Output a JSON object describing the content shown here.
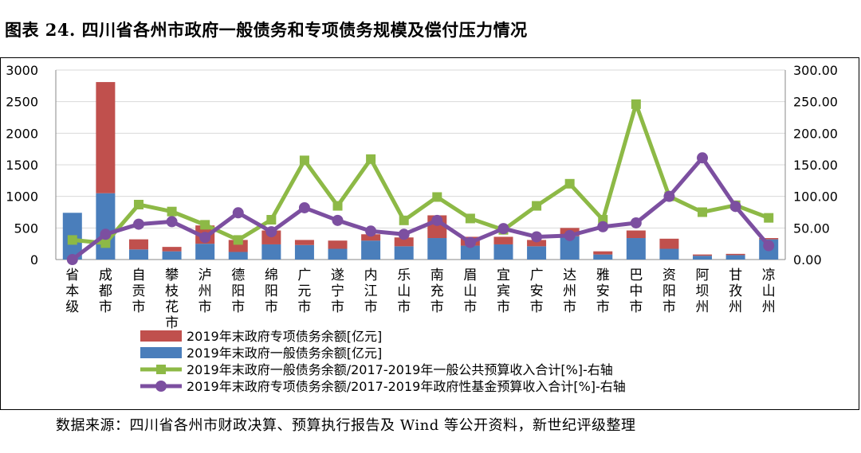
{
  "title": "图表 24. 四川省各州市政府一般债务和专项债务规模及偿付压力情况",
  "source": "数据来源：四川省各州市财政决算、预算执行报告及 Wind 等公开资料，新世纪评级整理",
  "chart_data": {
    "type": "bar",
    "stacked": true,
    "categories": [
      "省本级",
      "成都市",
      "自贡市",
      "攀枝花市",
      "泸州市",
      "德阳市",
      "绵阳市",
      "广元市",
      "遂宁市",
      "内江市",
      "乐山市",
      "南充市",
      "眉山市",
      "宜宾市",
      "广安市",
      "达州市",
      "雅安市",
      "巴中市",
      "资阳市",
      "阿坝州",
      "甘孜州",
      "凉山州"
    ],
    "series": [
      {
        "name": "2019年末政府专项债务余额[亿元]",
        "axis": "left",
        "kind": "bar",
        "color": "#c0504d",
        "values": [
          0,
          1760,
          160,
          70,
          290,
          190,
          220,
          80,
          130,
          100,
          140,
          360,
          140,
          120,
          100,
          130,
          50,
          120,
          160,
          20,
          20,
          20
        ]
      },
      {
        "name": "2019年末政府一般债务余额[亿元]",
        "axis": "left",
        "kind": "bar",
        "color": "#4a7ebb",
        "values": [
          740,
          1050,
          160,
          130,
          250,
          120,
          240,
          230,
          170,
          300,
          210,
          340,
          220,
          240,
          210,
          370,
          80,
          340,
          170,
          60,
          70,
          320
        ]
      },
      {
        "name": "2019年末政府一般债务余额/2017-2019年一般公共预算收入合计[%]-右轴",
        "axis": "right",
        "kind": "line",
        "color": "#8db946",
        "marker": "square",
        "values": [
          31,
          26,
          87,
          76,
          55,
          31,
          63,
          157,
          85,
          159,
          62,
          99,
          65,
          47,
          85,
          120,
          63,
          246,
          100,
          75,
          86,
          66
        ]
      },
      {
        "name": "2019年末政府专项债务余额/2017-2019年政府性基金预算收入合计[%]-右轴",
        "axis": "right",
        "kind": "line",
        "color": "#7c4fa0",
        "marker": "circle",
        "values": [
          0,
          40,
          56,
          60,
          35,
          74,
          44,
          82,
          62,
          45,
          40,
          62,
          27,
          49,
          36,
          38,
          52,
          58,
          100,
          161,
          84,
          22
        ]
      }
    ],
    "y_left": {
      "min": 0,
      "max": 3000,
      "ticks": [
        "0",
        "500",
        "1000",
        "1500",
        "2000",
        "2500",
        "3000"
      ]
    },
    "y_right": {
      "min": 0,
      "max": 300,
      "ticks": [
        "0.00",
        "50.00",
        "100.00",
        "150.00",
        "200.00",
        "250.00",
        "300.00"
      ]
    },
    "grid": true,
    "legend_position": "bottom"
  }
}
